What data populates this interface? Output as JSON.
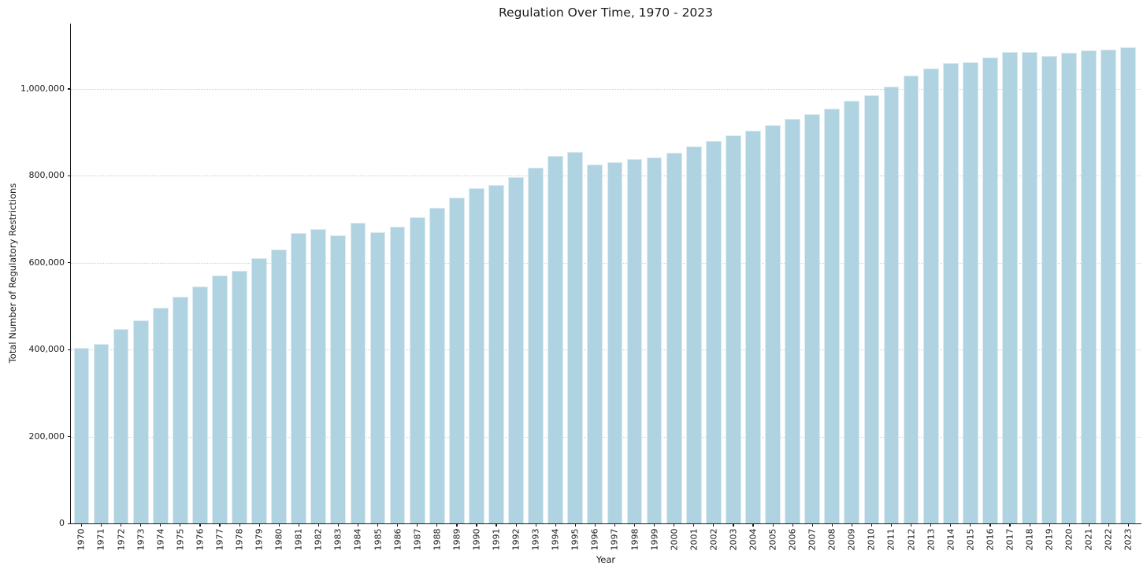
{
  "chart_data": {
    "type": "bar",
    "title": "Regulation Over Time, 1970 - 2023",
    "xlabel": "Year",
    "ylabel": "Total Number of Regulatory Restrictions",
    "categories": [
      "1970",
      "1971",
      "1972",
      "1973",
      "1974",
      "1975",
      "1976",
      "1977",
      "1978",
      "1979",
      "1980",
      "1981",
      "1982",
      "1983",
      "1984",
      "1985",
      "1986",
      "1987",
      "1988",
      "1989",
      "1990",
      "1991",
      "1992",
      "1993",
      "1994",
      "1995",
      "1996",
      "1997",
      "1998",
      "1999",
      "2000",
      "2001",
      "2002",
      "2003",
      "2004",
      "2005",
      "2006",
      "2007",
      "2008",
      "2009",
      "2010",
      "2011",
      "2012",
      "2013",
      "2014",
      "2015",
      "2016",
      "2017",
      "2018",
      "2019",
      "2020",
      "2021",
      "2022",
      "2023"
    ],
    "values": [
      404000,
      413000,
      448000,
      468000,
      497000,
      522000,
      546000,
      570000,
      581000,
      611000,
      631000,
      668000,
      678000,
      662000,
      691000,
      670000,
      682000,
      704000,
      727000,
      750000,
      772000,
      779000,
      796000,
      818000,
      845000,
      854000,
      825000,
      832000,
      839000,
      842000,
      853000,
      868000,
      881000,
      893000,
      904000,
      916000,
      930000,
      942000,
      955000,
      973000,
      986000,
      1005000,
      1031000,
      1046000,
      1060000,
      1061000,
      1073000,
      1084000,
      1084000,
      1076000,
      1083000,
      1088000,
      1090000,
      1096000
    ],
    "ylim": [
      0,
      1150000
    ],
    "yticks": [
      {
        "value": 0,
        "label": "0"
      },
      {
        "value": 200000,
        "label": "200,000"
      },
      {
        "value": 400000,
        "label": "400,000"
      },
      {
        "value": 600000,
        "label": "600,000"
      },
      {
        "value": 800000,
        "label": "800,000"
      },
      {
        "value": 1000000,
        "label": "1,000,000"
      }
    ],
    "grid": "horizontal-dotted",
    "legend": "none",
    "bar_color": "#afd3e0",
    "bar_edge_color": "#ddebf2",
    "grid_color": "#c9c9c9",
    "text_color": "#1c1c1c"
  }
}
